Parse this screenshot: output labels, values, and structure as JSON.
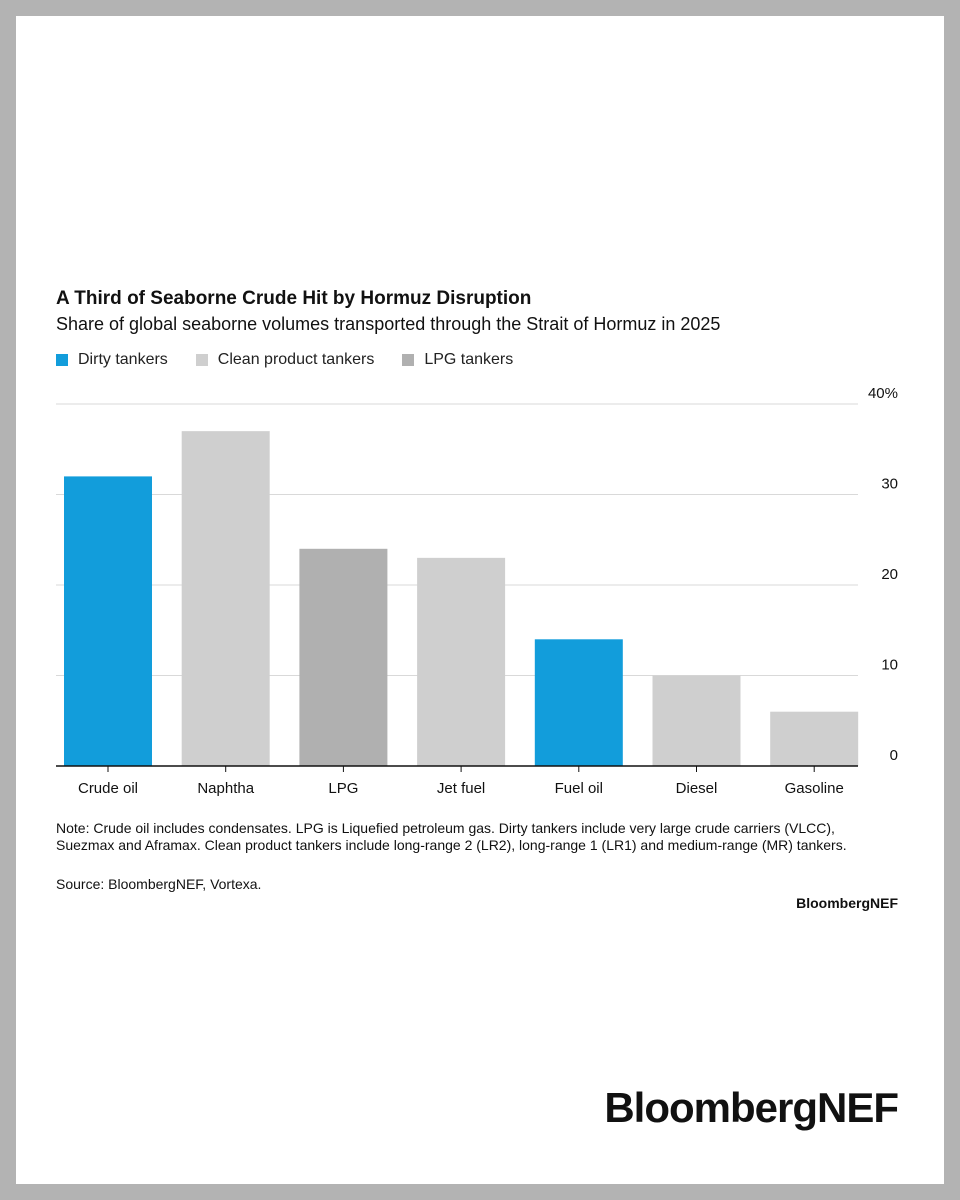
{
  "chart_data": {
    "type": "bar",
    "title": "A Third of Seaborne Crude Hit by Hormuz Disruption",
    "subtitle": "Share of global seaborne volumes transported through the Strait of Hormuz in 2025",
    "categories": [
      "Crude oil",
      "Naphtha",
      "LPG",
      "Jet fuel",
      "Fuel oil",
      "Diesel",
      "Gasoline"
    ],
    "values": [
      32,
      37,
      24,
      23,
      14,
      10,
      6
    ],
    "bar_groups": [
      "Dirty tankers",
      "Clean product tankers",
      "LPG tankers",
      "Clean product tankers",
      "Dirty tankers",
      "Clean product tankers",
      "Clean product tankers"
    ],
    "legend": [
      {
        "name": "Dirty tankers",
        "color": "#129ddb"
      },
      {
        "name": "Clean product tankers",
        "color": "#cfcfcf"
      },
      {
        "name": "LPG tankers",
        "color": "#b0b0b0"
      }
    ],
    "ylim": [
      0,
      40
    ],
    "yticks": [
      0,
      10,
      20,
      30,
      40
    ],
    "ytick_labels": [
      "0",
      "10",
      "20",
      "30",
      "40%"
    ],
    "grid": true,
    "y_axis_position": "right",
    "legend_position": "top-left"
  },
  "note": "Note: Crude oil includes condensates. LPG is Liquefied petroleum gas. Dirty tankers include very large crude carriers (VLCC), Suezmax and Aframax. Clean product tankers include long-range 2 (LR2), long-range 1 (LR1) and medium-range (MR) tankers.",
  "source": "Source: BloombergNEF, Vortexa.",
  "brand": "BloombergNEF",
  "brand_large": "BloombergNEF"
}
